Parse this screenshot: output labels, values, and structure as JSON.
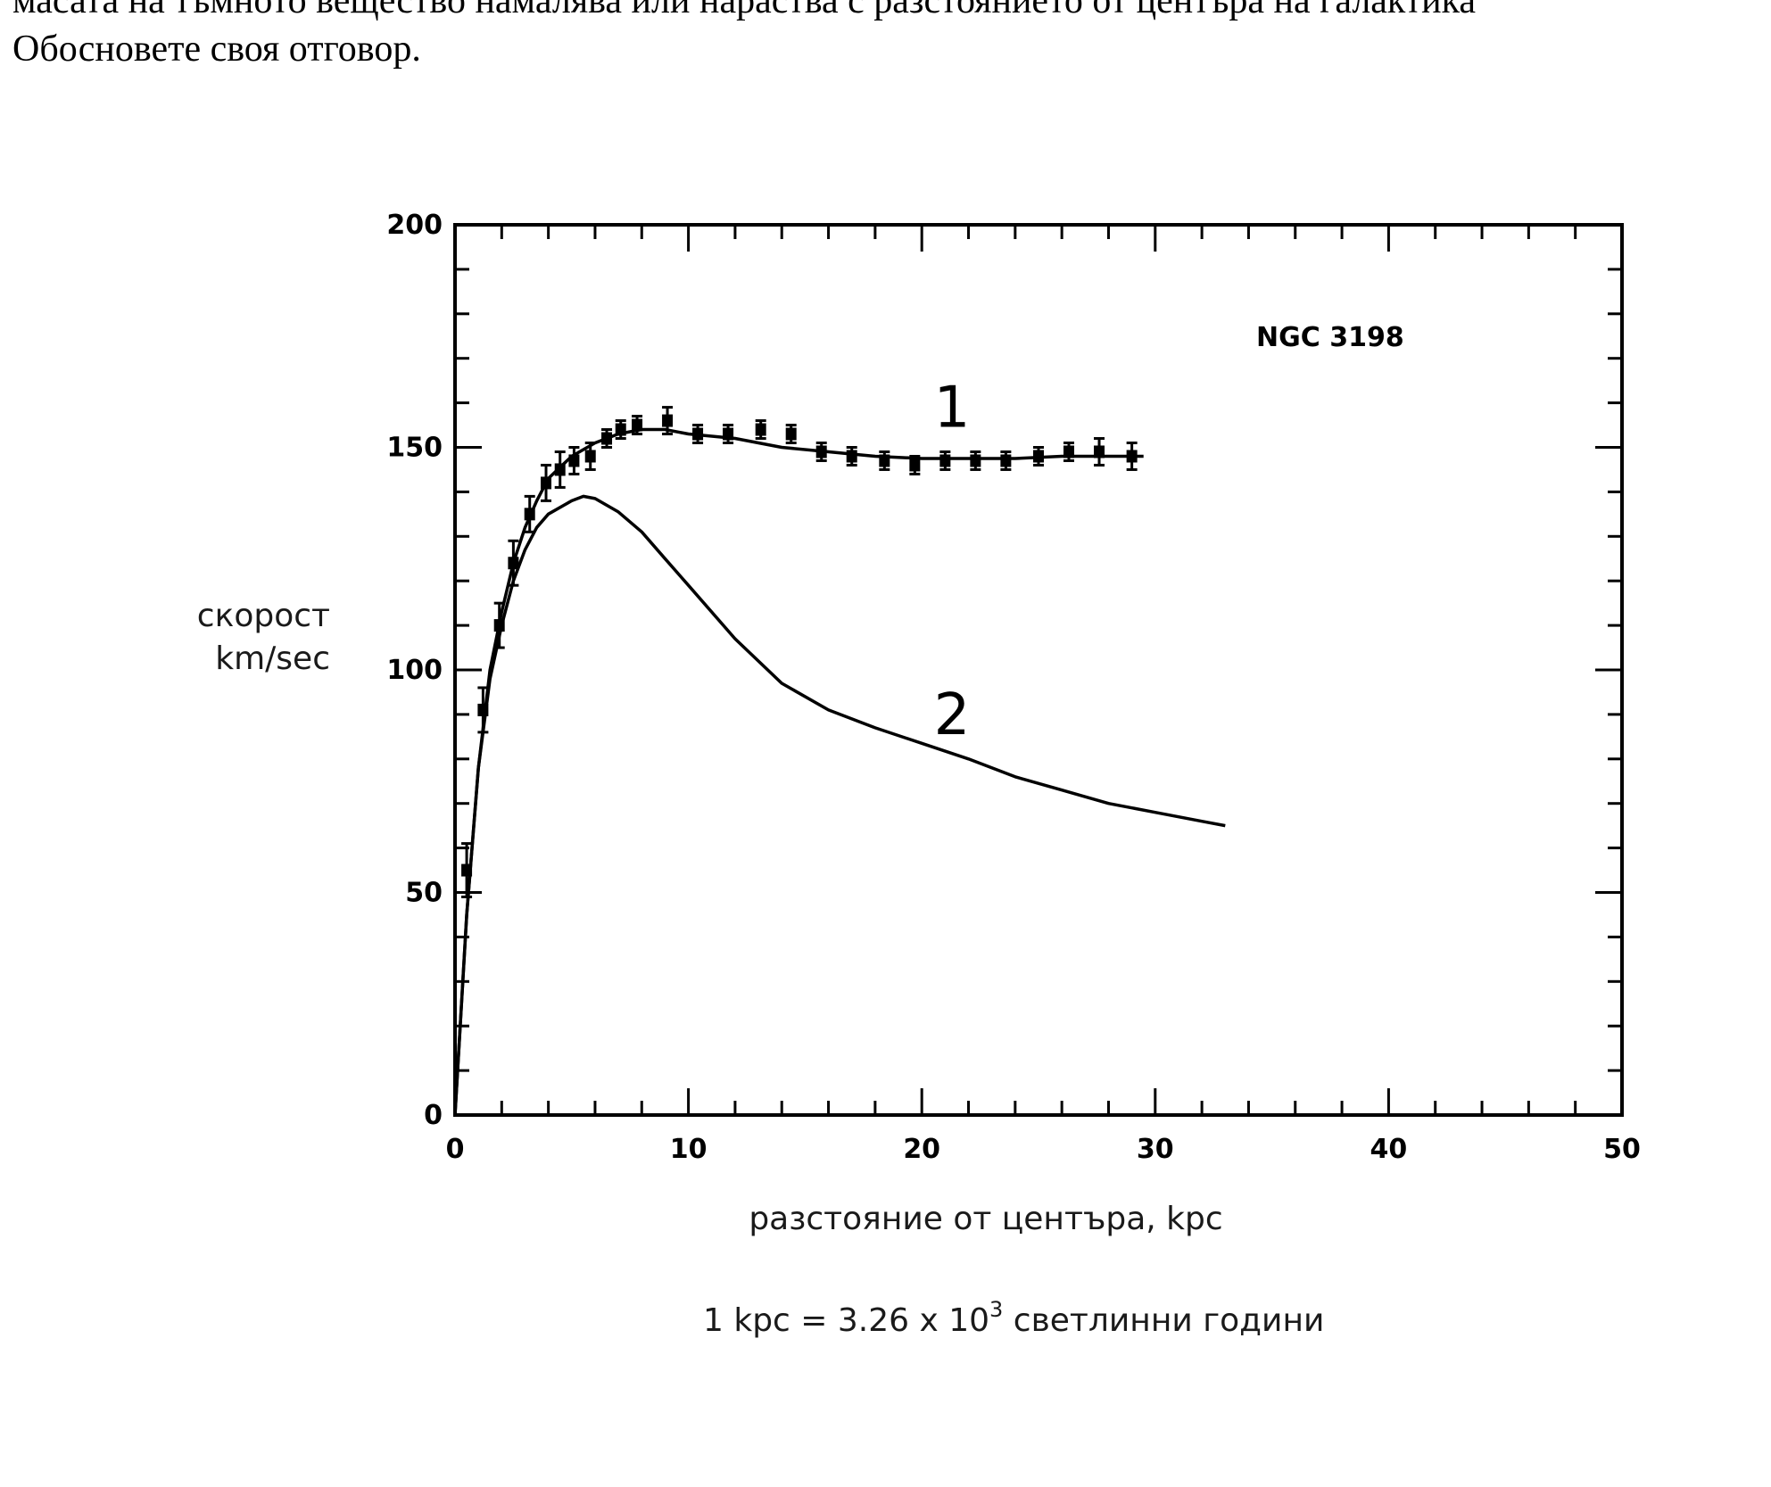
{
  "document": {
    "line1": "масата на тъмното вещество намалява или нараства с разстоянието от центъра на галактика",
    "line2": "Обосновете своя отговор."
  },
  "chart_data": {
    "type": "scatter",
    "title": "",
    "annotation": "NGC 3198",
    "ylabel_line1": "скорост",
    "ylabel_line2": "km/sec",
    "xlabel": "разстояние от центъра, kpc",
    "note_main": "1 kpc = 3.26 x 10",
    "note_sup": "3",
    "note_tail": " светлинни години",
    "xlim": [
      0,
      50
    ],
    "ylim": [
      0,
      200
    ],
    "x_ticks": [
      0,
      10,
      20,
      30,
      40,
      50
    ],
    "y_ticks": [
      0,
      50,
      100,
      150,
      200
    ],
    "grid": false,
    "colors": {
      "ink": "#000000"
    },
    "series": [
      {
        "name": "1",
        "label_pos": [
          21.2,
          159
        ],
        "points": [
          {
            "x": 0.5,
            "y": 55,
            "err": 6
          },
          {
            "x": 1.2,
            "y": 91,
            "err": 5
          },
          {
            "x": 1.9,
            "y": 110,
            "err": 5
          },
          {
            "x": 2.5,
            "y": 124,
            "err": 5
          },
          {
            "x": 3.2,
            "y": 135,
            "err": 4
          },
          {
            "x": 3.9,
            "y": 142,
            "err": 4
          },
          {
            "x": 4.5,
            "y": 145,
            "err": 4
          },
          {
            "x": 5.1,
            "y": 147,
            "err": 3
          },
          {
            "x": 5.8,
            "y": 148,
            "err": 3
          },
          {
            "x": 6.5,
            "y": 152,
            "err": 2
          },
          {
            "x": 7.1,
            "y": 154,
            "err": 2
          },
          {
            "x": 7.8,
            "y": 155,
            "err": 2
          },
          {
            "x": 9.1,
            "y": 156,
            "err": 3
          },
          {
            "x": 10.4,
            "y": 153,
            "err": 2
          },
          {
            "x": 11.7,
            "y": 153,
            "err": 2
          },
          {
            "x": 13.1,
            "y": 154,
            "err": 2
          },
          {
            "x": 14.4,
            "y": 153,
            "err": 2
          },
          {
            "x": 15.7,
            "y": 149,
            "err": 2
          },
          {
            "x": 17.0,
            "y": 148,
            "err": 2
          },
          {
            "x": 18.4,
            "y": 147,
            "err": 2
          },
          {
            "x": 19.7,
            "y": 146,
            "err": 2
          },
          {
            "x": 21.0,
            "y": 147,
            "err": 2
          },
          {
            "x": 22.3,
            "y": 147,
            "err": 2
          },
          {
            "x": 23.6,
            "y": 147,
            "err": 2
          },
          {
            "x": 25.0,
            "y": 148,
            "err": 2
          },
          {
            "x": 26.3,
            "y": 149,
            "err": 2
          },
          {
            "x": 27.6,
            "y": 149,
            "err": 3
          },
          {
            "x": 29.0,
            "y": 148,
            "err": 3
          }
        ],
        "fit": [
          [
            0,
            0
          ],
          [
            0.5,
            45
          ],
          [
            1,
            78
          ],
          [
            1.5,
            100
          ],
          [
            2,
            113
          ],
          [
            2.5,
            124
          ],
          [
            3,
            132
          ],
          [
            3.5,
            138
          ],
          [
            4,
            143
          ],
          [
            5,
            148
          ],
          [
            6,
            151
          ],
          [
            7,
            153
          ],
          [
            8,
            154
          ],
          [
            9,
            154
          ],
          [
            10,
            153
          ],
          [
            12,
            152
          ],
          [
            14,
            150
          ],
          [
            16,
            149
          ],
          [
            18,
            148
          ],
          [
            20,
            147.5
          ],
          [
            22,
            147.5
          ],
          [
            24,
            147.5
          ],
          [
            26,
            148
          ],
          [
            28,
            148
          ],
          [
            29.5,
            148
          ]
        ]
      },
      {
        "name": "2",
        "label_pos": [
          21.2,
          90
        ],
        "fit": [
          [
            0,
            0
          ],
          [
            0.5,
            45
          ],
          [
            1,
            78
          ],
          [
            1.5,
            98
          ],
          [
            2,
            110
          ],
          [
            2.5,
            120
          ],
          [
            3,
            127
          ],
          [
            3.5,
            132
          ],
          [
            4,
            135
          ],
          [
            5,
            138
          ],
          [
            5.5,
            139
          ],
          [
            6,
            138.5
          ],
          [
            7,
            135.5
          ],
          [
            8,
            131
          ],
          [
            9,
            125
          ],
          [
            10,
            119
          ],
          [
            12,
            107
          ],
          [
            14,
            97
          ],
          [
            16,
            91
          ],
          [
            18,
            87
          ],
          [
            20,
            83.5
          ],
          [
            22,
            80
          ],
          [
            24,
            76
          ],
          [
            26,
            73
          ],
          [
            28,
            70
          ],
          [
            30,
            68
          ],
          [
            32,
            66
          ],
          [
            33,
            65
          ]
        ]
      }
    ]
  }
}
